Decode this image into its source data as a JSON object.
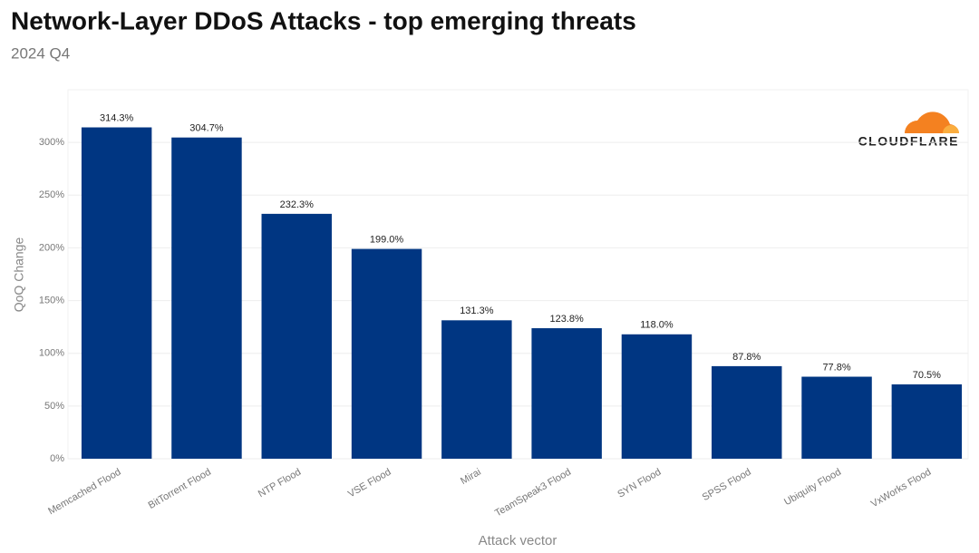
{
  "chart_data": {
    "type": "bar",
    "title": "Network-Layer DDoS Attacks - top emerging threats",
    "subtitle": "2024 Q4",
    "x_label": "Attack vector",
    "y_label": "QoQ Change",
    "categories": [
      "Memcached Flood",
      "BitTorrent Flood",
      "NTP Flood",
      "VSE Flood",
      "Mirai",
      "TeamSpeak3 Flood",
      "SYN Flood",
      "SPSS Flood",
      "Ubiquity Flood",
      "VxWorks Flood"
    ],
    "values": [
      314.3,
      304.7,
      232.3,
      199.0,
      131.3,
      123.8,
      118.0,
      87.8,
      77.8,
      70.5
    ],
    "value_labels": [
      "314.3%",
      "304.7%",
      "232.3%",
      "199.0%",
      "131.3%",
      "123.8%",
      "118.0%",
      "87.8%",
      "77.8%",
      "70.5%"
    ],
    "color": "#003682",
    "ylim": [
      0,
      350
    ],
    "yticks": [
      {
        "value": 0,
        "label": "0%"
      },
      {
        "value": 50,
        "label": "50%"
      },
      {
        "value": 100,
        "label": "100%"
      },
      {
        "value": 150,
        "label": "150%"
      },
      {
        "value": 200,
        "label": "200%"
      },
      {
        "value": 250,
        "label": "250%"
      },
      {
        "value": 300,
        "label": "300%"
      }
    ],
    "grid": true
  },
  "logo": "CLOUDFLARE"
}
